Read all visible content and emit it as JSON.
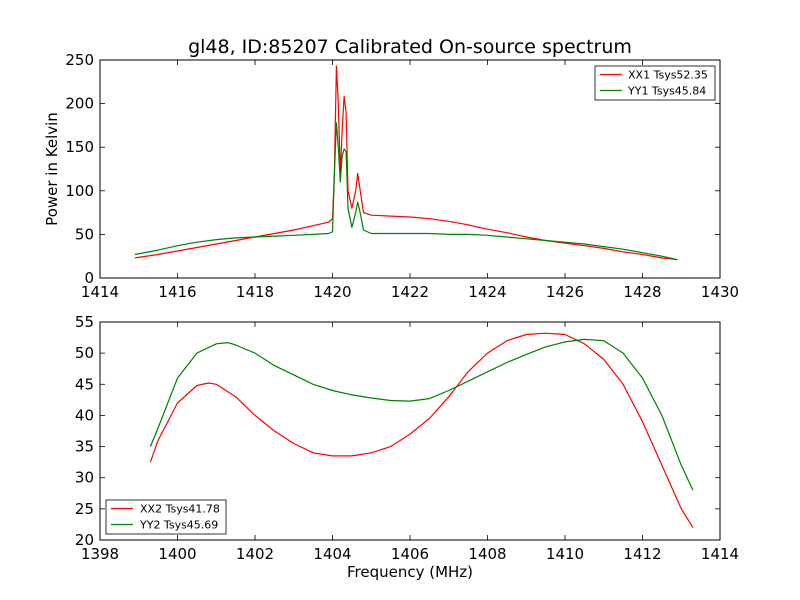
{
  "chart_data": [
    {
      "type": "line",
      "title": "gl48, ID:85207 Calibrated On-source spectrum",
      "xlabel": "",
      "ylabel": "Power in Kelvin",
      "xlim": [
        1414,
        1430
      ],
      "ylim": [
        0,
        250
      ],
      "xticks": [
        "1414",
        "1416",
        "1418",
        "1420",
        "1422",
        "1424",
        "1426",
        "1428",
        "1430"
      ],
      "yticks": [
        "0",
        "50",
        "100",
        "150",
        "200",
        "250"
      ],
      "grid": false,
      "legend": "top-right",
      "series": [
        {
          "name": "XX1 Tsys52.35",
          "color": "#ff0000",
          "points": [
            [
              1414.9,
              23
            ],
            [
              1415.5,
              27
            ],
            [
              1416,
              31
            ],
            [
              1416.5,
              35
            ],
            [
              1417,
              39
            ],
            [
              1417.5,
              43
            ],
            [
              1418,
              47
            ],
            [
              1418.5,
              51
            ],
            [
              1419,
              55
            ],
            [
              1419.5,
              60
            ],
            [
              1419.9,
              64
            ],
            [
              1420.0,
              68
            ],
            [
              1420.05,
              120
            ],
            [
              1420.1,
              243
            ],
            [
              1420.15,
              200
            ],
            [
              1420.2,
              120
            ],
            [
              1420.25,
              170
            ],
            [
              1420.3,
              208
            ],
            [
              1420.35,
              190
            ],
            [
              1420.4,
              100
            ],
            [
              1420.5,
              80
            ],
            [
              1420.6,
              100
            ],
            [
              1420.65,
              120
            ],
            [
              1420.7,
              105
            ],
            [
              1420.8,
              75
            ],
            [
              1421,
              72
            ],
            [
              1421.5,
              71
            ],
            [
              1422,
              70
            ],
            [
              1422.5,
              68
            ],
            [
              1423,
              65
            ],
            [
              1423.5,
              61
            ],
            [
              1424,
              56
            ],
            [
              1424.5,
              52
            ],
            [
              1425,
              47
            ],
            [
              1425.5,
              43
            ],
            [
              1426,
              40
            ],
            [
              1426.5,
              37
            ],
            [
              1427,
              34
            ],
            [
              1427.5,
              30
            ],
            [
              1428,
              27
            ],
            [
              1428.5,
              23
            ],
            [
              1428.9,
              21
            ]
          ]
        },
        {
          "name": "YY1 Tsys45.84",
          "color": "#008000",
          "points": [
            [
              1414.9,
              27
            ],
            [
              1415.5,
              32
            ],
            [
              1416,
              37
            ],
            [
              1416.5,
              41
            ],
            [
              1417,
              44
            ],
            [
              1417.5,
              46
            ],
            [
              1418,
              47
            ],
            [
              1418.5,
              48
            ],
            [
              1419,
              49
            ],
            [
              1419.5,
              50
            ],
            [
              1419.9,
              51
            ],
            [
              1420.0,
              53
            ],
            [
              1420.05,
              120
            ],
            [
              1420.1,
              178
            ],
            [
              1420.15,
              150
            ],
            [
              1420.2,
              110
            ],
            [
              1420.25,
              140
            ],
            [
              1420.3,
              148
            ],
            [
              1420.35,
              145
            ],
            [
              1420.4,
              80
            ],
            [
              1420.5,
              58
            ],
            [
              1420.6,
              75
            ],
            [
              1420.65,
              87
            ],
            [
              1420.7,
              78
            ],
            [
              1420.8,
              55
            ],
            [
              1421,
              51
            ],
            [
              1421.5,
              51
            ],
            [
              1422,
              51
            ],
            [
              1422.5,
              51
            ],
            [
              1423,
              50
            ],
            [
              1423.5,
              50
            ],
            [
              1424,
              49
            ],
            [
              1424.5,
              47
            ],
            [
              1425,
              45
            ],
            [
              1425.5,
              43
            ],
            [
              1426,
              41
            ],
            [
              1426.5,
              39
            ],
            [
              1427,
              36
            ],
            [
              1427.5,
              33
            ],
            [
              1428,
              29
            ],
            [
              1428.5,
              25
            ],
            [
              1428.9,
              21
            ]
          ]
        }
      ]
    },
    {
      "type": "line",
      "title": "",
      "xlabel": "Frequency (MHz)",
      "ylabel": "",
      "xlim": [
        1398,
        1414
      ],
      "ylim": [
        20,
        55
      ],
      "xticks": [
        "1398",
        "1400",
        "1402",
        "1404",
        "1406",
        "1408",
        "1410",
        "1412",
        "1414"
      ],
      "yticks": [
        "20",
        "25",
        "30",
        "35",
        "40",
        "45",
        "50",
        "55"
      ],
      "grid": false,
      "legend": "bottom-left",
      "series": [
        {
          "name": "XX2 Tsys41.78",
          "color": "#ff0000",
          "points": [
            [
              1399.3,
              32.5
            ],
            [
              1399.5,
              36
            ],
            [
              1400,
              42
            ],
            [
              1400.5,
              44.8
            ],
            [
              1400.8,
              45.2
            ],
            [
              1401,
              45
            ],
            [
              1401.5,
              43
            ],
            [
              1402,
              40
            ],
            [
              1402.5,
              37.5
            ],
            [
              1403,
              35.5
            ],
            [
              1403.5,
              34
            ],
            [
              1404,
              33.5
            ],
            [
              1404.5,
              33.5
            ],
            [
              1405,
              34
            ],
            [
              1405.5,
              35
            ],
            [
              1406,
              37
            ],
            [
              1406.5,
              39.5
            ],
            [
              1407,
              43
            ],
            [
              1407.5,
              47
            ],
            [
              1408,
              50
            ],
            [
              1408.5,
              52
            ],
            [
              1409,
              53
            ],
            [
              1409.5,
              53.2
            ],
            [
              1410,
              53
            ],
            [
              1410.5,
              51.5
            ],
            [
              1411,
              49
            ],
            [
              1411.5,
              45
            ],
            [
              1412,
              39
            ],
            [
              1412.5,
              32
            ],
            [
              1413,
              25
            ],
            [
              1413.3,
              22
            ]
          ]
        },
        {
          "name": "YY2 Tsys45.69",
          "color": "#008000",
          "points": [
            [
              1399.3,
              35
            ],
            [
              1399.5,
              38
            ],
            [
              1400,
              46
            ],
            [
              1400.5,
              50
            ],
            [
              1401,
              51.5
            ],
            [
              1401.3,
              51.7
            ],
            [
              1401.5,
              51.3
            ],
            [
              1402,
              50
            ],
            [
              1402.5,
              48
            ],
            [
              1403,
              46.5
            ],
            [
              1403.5,
              45
            ],
            [
              1404,
              44
            ],
            [
              1404.5,
              43.3
            ],
            [
              1405,
              42.8
            ],
            [
              1405.5,
              42.4
            ],
            [
              1406,
              42.3
            ],
            [
              1406.5,
              42.7
            ],
            [
              1407,
              44
            ],
            [
              1407.5,
              45.5
            ],
            [
              1408,
              47
            ],
            [
              1408.5,
              48.5
            ],
            [
              1409,
              49.8
            ],
            [
              1409.5,
              51
            ],
            [
              1410,
              51.8
            ],
            [
              1410.5,
              52.2
            ],
            [
              1411,
              52
            ],
            [
              1411.5,
              50
            ],
            [
              1412,
              46
            ],
            [
              1412.5,
              40
            ],
            [
              1413,
              32
            ],
            [
              1413.3,
              28
            ]
          ]
        }
      ]
    }
  ]
}
